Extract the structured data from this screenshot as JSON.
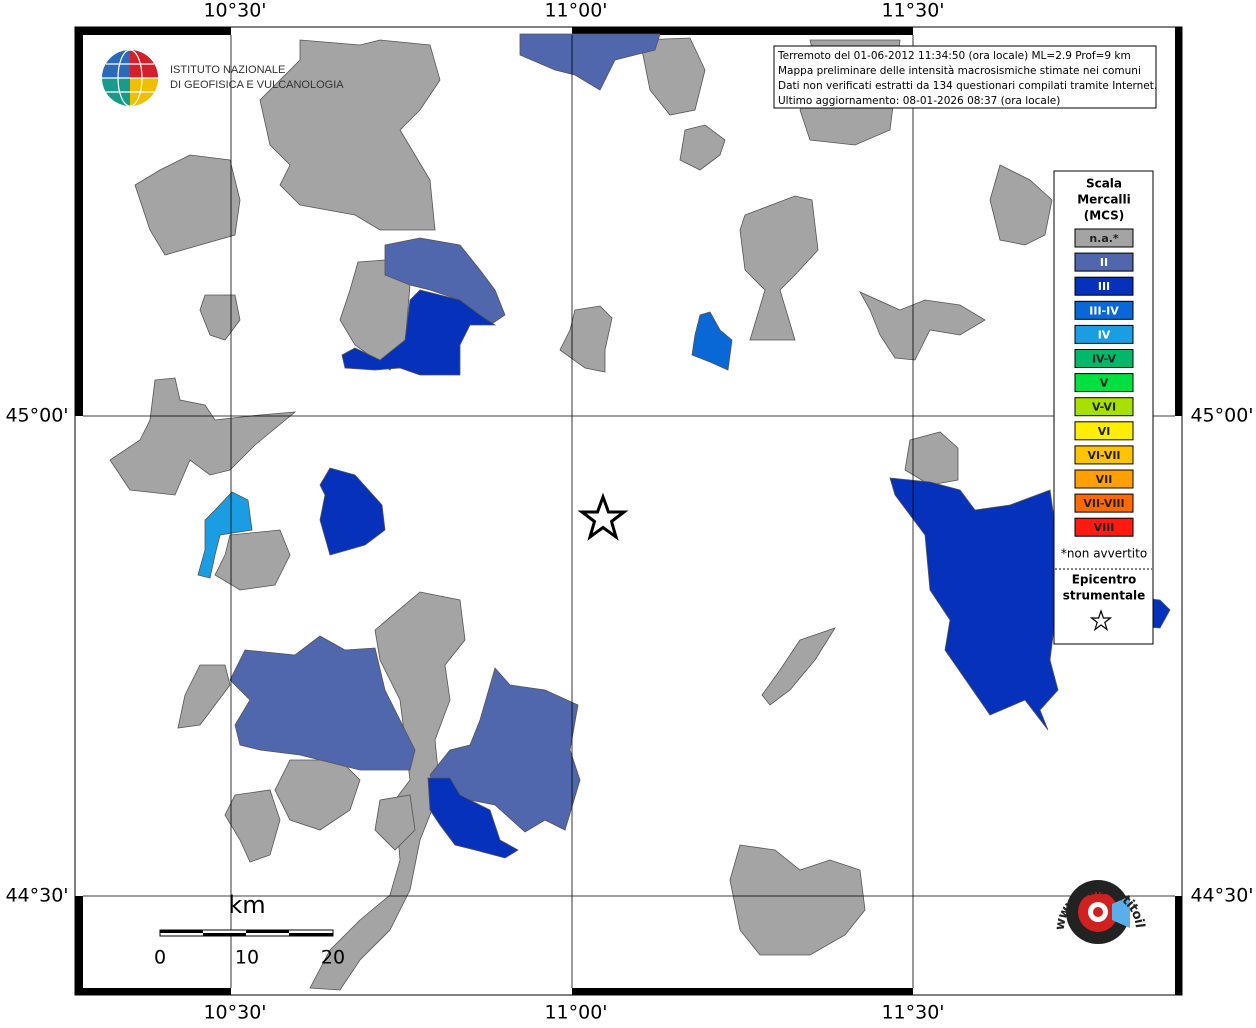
{
  "map": {
    "lon_labels": [
      "10°30'",
      "11°00'",
      "11°30'"
    ],
    "lat_labels": [
      "45°00'",
      "44°30'"
    ],
    "institute": [
      "ISTITUTO NAZIONALE",
      "DI GEOFISICA E VULCANOLOGIA"
    ],
    "info_lines": [
      "Terremoto del 01-06-2012 11:34:50 (ora locale) ML=2.9 Prof=9 km",
      "Mappa preliminare delle intensità macrosismiche stimate nei comuni",
      "Dati non verificati estratti da 134 questionari compilati tramite Internet.",
      "Ultimo aggiornamento: 08-01-2026 08:37 (ora locale)"
    ],
    "legend": {
      "title": [
        "Scala",
        "Mercalli",
        "(MCS)"
      ],
      "items": [
        {
          "label": "n.a.*",
          "color": "#a4a4a4"
        },
        {
          "label": "II",
          "color": "#5066ad"
        },
        {
          "label": "III",
          "color": "#0531bb"
        },
        {
          "label": "III-IV",
          "color": "#0a68d6"
        },
        {
          "label": "IV",
          "color": "#1b9de3"
        },
        {
          "label": "IV-V",
          "color": "#00b86a"
        },
        {
          "label": "V",
          "color": "#00e040"
        },
        {
          "label": "V-VI",
          "color": "#a8e000"
        },
        {
          "label": "VI",
          "color": "#ffee00"
        },
        {
          "label": "VI-VII",
          "color": "#ffc400"
        },
        {
          "label": "VII",
          "color": "#ffa000"
        },
        {
          "label": "VII-VIII",
          "color": "#ff6a00"
        },
        {
          "label": "VIII",
          "color": "#ff1a10"
        }
      ],
      "note": "*non avvertito",
      "epicenter": [
        "Epicentro",
        "strumentale"
      ]
    },
    "scale_bar": {
      "unit": "km",
      "ticks": [
        "0",
        "10",
        "20"
      ]
    },
    "logo_text": "www.haisentitoilterremoto.it"
  }
}
